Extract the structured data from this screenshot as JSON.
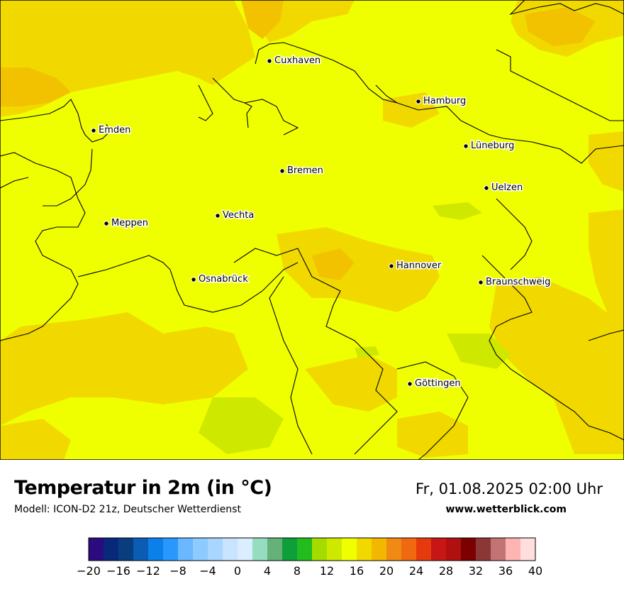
{
  "footer": {
    "title": "Temperatur in 2m (in °C)",
    "subtitle": "Modell: ICON-D2 21z, Deutscher Wetterdienst",
    "datetime": "Fr, 01.08.2025 02:00 Uhr",
    "website": "www.wetterblick.com"
  },
  "cities": [
    {
      "name": "Cuxhaven"
    },
    {
      "name": "Hamburg"
    },
    {
      "name": "Emden"
    },
    {
      "name": "Lüneburg"
    },
    {
      "name": "Bremen"
    },
    {
      "name": "Uelzen"
    },
    {
      "name": "Vechta"
    },
    {
      "name": "Meppen"
    },
    {
      "name": "Hannover"
    },
    {
      "name": "Osnabrück"
    },
    {
      "name": "Braunschweig"
    },
    {
      "name": "Göttingen"
    }
  ],
  "colors": {
    "base_field": "#f0ff00",
    "warm_field": "#f1d900",
    "warmer_field": "#f2c200",
    "cool_field": "#cfe800",
    "border": "#000000"
  },
  "legend": {
    "ticks": [
      "−20",
      "−16",
      "−12",
      "−8",
      "−4",
      "0",
      "4",
      "8",
      "12",
      "16",
      "20",
      "24",
      "28",
      "32",
      "36",
      "40"
    ],
    "colors": [
      "#2c0a80",
      "#08287a",
      "#083e80",
      "#0a5cb4",
      "#0a80e8",
      "#2898ff",
      "#6ab8ff",
      "#8ccaff",
      "#a8d6ff",
      "#c8e4ff",
      "#dbeeff",
      "#96dcc0",
      "#66b07a",
      "#0e9e3a",
      "#22bc1e",
      "#a4dc00",
      "#cfe800",
      "#f0ff00",
      "#f1d900",
      "#f2b800",
      "#f18a12",
      "#f06810",
      "#e63a0e",
      "#c81616",
      "#b01010",
      "#7c0000",
      "#8c3636",
      "#c27474",
      "#ffb4b4",
      "#ffdede"
    ]
  }
}
